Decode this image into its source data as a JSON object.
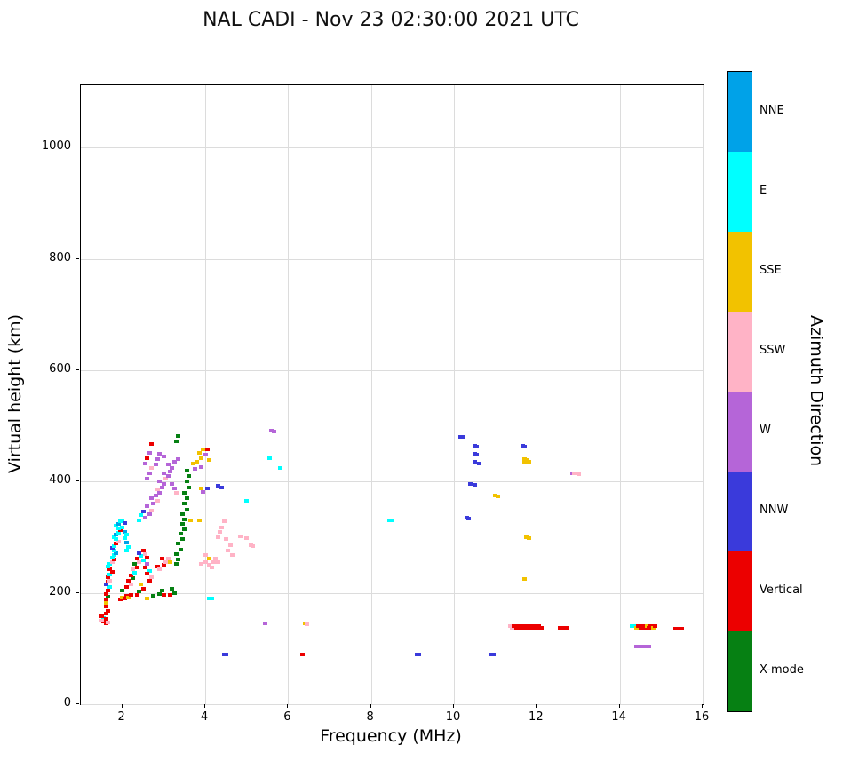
{
  "title": "NAL CADI - Nov 23 02:30:00 2021 UTC",
  "chart_data": {
    "type": "scatter",
    "title": "NAL CADI - Nov 23 02:30:00 2021 UTC",
    "xlabel": "Frequency (MHz)",
    "ylabel": "Virtual height (km)",
    "xlim": [
      1,
      16
    ],
    "ylim": [
      0,
      1112
    ],
    "xticks": [
      2,
      4,
      6,
      8,
      10,
      12,
      14,
      16
    ],
    "yticks": [
      0,
      200,
      400,
      600,
      800,
      1000
    ],
    "grid": true,
    "legend_position": "right-colorbar",
    "marker": {
      "w": 5,
      "h": 4
    },
    "colorbar": {
      "label": "Azimuth Direction",
      "categories": [
        {
          "key": "NNE",
          "label": "NNE",
          "color": "#00A2E8"
        },
        {
          "key": "E",
          "label": "E",
          "color": "#00FFFF"
        },
        {
          "key": "SSE",
          "label": "SSE",
          "color": "#F2C200"
        },
        {
          "key": "SSW",
          "label": "SSW",
          "color": "#FFB3C6"
        },
        {
          "key": "W",
          "label": "W",
          "color": "#B565D8"
        },
        {
          "key": "NNW",
          "label": "NNW",
          "color": "#3A3ADB"
        },
        {
          "key": "V",
          "label": "Vertical",
          "color": "#EC0000"
        },
        {
          "key": "X",
          "label": "X-mode",
          "color": "#068013"
        }
      ]
    },
    "points": [
      [
        1.55,
        148,
        "V"
      ],
      [
        1.6,
        145,
        "V"
      ],
      [
        1.65,
        146,
        "SSW"
      ],
      [
        1.55,
        155,
        "E"
      ],
      [
        1.6,
        153,
        "V"
      ],
      [
        1.6,
        162,
        "V"
      ],
      [
        1.65,
        168,
        "V"
      ],
      [
        1.6,
        175,
        "V"
      ],
      [
        1.62,
        182,
        "SSE"
      ],
      [
        1.6,
        188,
        "V"
      ],
      [
        1.65,
        193,
        "X"
      ],
      [
        1.6,
        198,
        "V"
      ],
      [
        1.65,
        205,
        "V"
      ],
      [
        1.7,
        210,
        "E"
      ],
      [
        1.6,
        215,
        "NNW"
      ],
      [
        1.65,
        220,
        "V"
      ],
      [
        1.7,
        222,
        "SSW"
      ],
      [
        1.65,
        228,
        "V"
      ],
      [
        1.7,
        233,
        "E"
      ],
      [
        1.75,
        238,
        "V"
      ],
      [
        1.7,
        243,
        "V"
      ],
      [
        1.65,
        248,
        "E"
      ],
      [
        1.5,
        150,
        "SSW"
      ],
      [
        1.5,
        158,
        "V"
      ],
      [
        1.7,
        252,
        "E"
      ],
      [
        1.75,
        256,
        "SSW"
      ],
      [
        1.8,
        260,
        "V"
      ],
      [
        1.75,
        264,
        "E"
      ],
      [
        1.8,
        268,
        "E"
      ],
      [
        1.85,
        272,
        "NNE"
      ],
      [
        1.8,
        276,
        "E"
      ],
      [
        1.75,
        280,
        "NNW"
      ],
      [
        1.8,
        284,
        "E"
      ],
      [
        1.85,
        288,
        "V"
      ],
      [
        1.9,
        292,
        "SSW"
      ],
      [
        1.85,
        296,
        "E"
      ],
      [
        1.8,
        300,
        "E"
      ],
      [
        1.85,
        304,
        "NNE"
      ],
      [
        1.9,
        308,
        "E"
      ],
      [
        1.95,
        312,
        "V"
      ],
      [
        1.9,
        316,
        "E"
      ],
      [
        1.85,
        320,
        "E"
      ],
      [
        1.9,
        324,
        "NNE"
      ],
      [
        1.95,
        328,
        "E"
      ],
      [
        2.0,
        330,
        "E"
      ],
      [
        2.05,
        325,
        "NNW"
      ],
      [
        2.0,
        318,
        "E"
      ],
      [
        2.05,
        310,
        "NNE"
      ],
      [
        2.1,
        305,
        "E"
      ],
      [
        2.05,
        298,
        "E"
      ],
      [
        2.1,
        290,
        "NNE"
      ],
      [
        2.15,
        283,
        "E"
      ],
      [
        2.1,
        276,
        "E"
      ],
      [
        1.95,
        188,
        "V"
      ],
      [
        2.0,
        192,
        "SSE"
      ],
      [
        2.05,
        190,
        "V"
      ],
      [
        2.1,
        195,
        "V"
      ],
      [
        2.15,
        192,
        "SSE"
      ],
      [
        2.2,
        196,
        "V"
      ],
      [
        2.0,
        205,
        "X"
      ],
      [
        2.1,
        210,
        "V"
      ],
      [
        2.2,
        215,
        "SSW"
      ],
      [
        2.15,
        222,
        "V"
      ],
      [
        2.25,
        226,
        "X"
      ],
      [
        2.2,
        232,
        "V"
      ],
      [
        2.3,
        236,
        "E"
      ],
      [
        2.25,
        242,
        "SSW"
      ],
      [
        2.35,
        246,
        "V"
      ],
      [
        2.3,
        252,
        "X"
      ],
      [
        2.4,
        256,
        "SSW"
      ],
      [
        2.35,
        262,
        "V"
      ],
      [
        2.45,
        266,
        "E"
      ],
      [
        2.4,
        272,
        "NNW"
      ],
      [
        2.5,
        276,
        "V"
      ],
      [
        2.55,
        270,
        "SSW"
      ],
      [
        2.6,
        264,
        "V"
      ],
      [
        2.5,
        258,
        "E"
      ],
      [
        2.6,
        252,
        "W"
      ],
      [
        2.55,
        246,
        "V"
      ],
      [
        2.65,
        240,
        "E"
      ],
      [
        2.6,
        234,
        "V"
      ],
      [
        2.7,
        228,
        "SSW"
      ],
      [
        2.65,
        222,
        "V"
      ],
      [
        2.45,
        215,
        "SSE"
      ],
      [
        2.5,
        208,
        "V"
      ],
      [
        2.4,
        202,
        "X"
      ],
      [
        2.35,
        196,
        "V"
      ],
      [
        2.85,
        248,
        "V"
      ],
      [
        2.9,
        242,
        "SSW"
      ],
      [
        3.0,
        250,
        "V"
      ],
      [
        3.05,
        256,
        "SSW"
      ],
      [
        2.95,
        262,
        "V"
      ],
      [
        3.1,
        262,
        "SSW"
      ],
      [
        3.15,
        256,
        "SSE"
      ],
      [
        2.9,
        198,
        "X"
      ],
      [
        2.95,
        204,
        "X"
      ],
      [
        3.0,
        196,
        "V"
      ],
      [
        2.6,
        190,
        "SSE"
      ],
      [
        2.75,
        195,
        "X"
      ],
      [
        2.55,
        335,
        "W"
      ],
      [
        2.65,
        342,
        "W"
      ],
      [
        2.7,
        348,
        "SSW"
      ],
      [
        2.6,
        355,
        "W"
      ],
      [
        2.75,
        360,
        "W"
      ],
      [
        2.85,
        365,
        "SSW"
      ],
      [
        2.7,
        370,
        "W"
      ],
      [
        2.8,
        375,
        "W"
      ],
      [
        2.9,
        380,
        "W"
      ],
      [
        2.85,
        386,
        "SSW"
      ],
      [
        2.95,
        390,
        "W"
      ],
      [
        3.0,
        395,
        "W"
      ],
      [
        2.9,
        400,
        "W"
      ],
      [
        3.05,
        405,
        "SSW"
      ],
      [
        3.1,
        410,
        "W"
      ],
      [
        3.0,
        415,
        "W"
      ],
      [
        3.15,
        418,
        "W"
      ],
      [
        3.2,
        424,
        "W"
      ],
      [
        3.1,
        430,
        "W"
      ],
      [
        3.25,
        435,
        "W"
      ],
      [
        2.6,
        405,
        "W"
      ],
      [
        2.65,
        415,
        "W"
      ],
      [
        2.7,
        425,
        "SSW"
      ],
      [
        2.55,
        432,
        "W"
      ],
      [
        2.6,
        442,
        "V"
      ],
      [
        2.65,
        452,
        "W"
      ],
      [
        2.7,
        467,
        "V"
      ],
      [
        2.8,
        430,
        "W"
      ],
      [
        2.85,
        440,
        "W"
      ],
      [
        2.9,
        450,
        "W"
      ],
      [
        3.0,
        445,
        "W"
      ],
      [
        3.35,
        440,
        "W"
      ],
      [
        2.45,
        340,
        "E"
      ],
      [
        2.5,
        346,
        "NNW"
      ],
      [
        2.4,
        330,
        "E"
      ],
      [
        3.2,
        396,
        "W"
      ],
      [
        3.25,
        388,
        "W"
      ],
      [
        3.3,
        380,
        "SSW"
      ],
      [
        3.3,
        252,
        "X"
      ],
      [
        3.35,
        260,
        "X"
      ],
      [
        3.3,
        270,
        "X"
      ],
      [
        3.4,
        278,
        "X"
      ],
      [
        3.35,
        288,
        "X"
      ],
      [
        3.45,
        296,
        "X"
      ],
      [
        3.4,
        306,
        "X"
      ],
      [
        3.5,
        314,
        "X"
      ],
      [
        3.45,
        324,
        "X"
      ],
      [
        3.5,
        332,
        "X"
      ],
      [
        3.45,
        342,
        "X"
      ],
      [
        3.55,
        350,
        "X"
      ],
      [
        3.5,
        360,
        "X"
      ],
      [
        3.55,
        370,
        "X"
      ],
      [
        3.5,
        380,
        "X"
      ],
      [
        3.6,
        390,
        "X"
      ],
      [
        3.55,
        400,
        "X"
      ],
      [
        3.6,
        410,
        "X"
      ],
      [
        3.55,
        420,
        "X"
      ],
      [
        3.3,
        472,
        "X"
      ],
      [
        3.35,
        482,
        "X"
      ],
      [
        3.2,
        208,
        "X"
      ],
      [
        3.25,
        200,
        "X"
      ],
      [
        3.15,
        196,
        "V"
      ],
      [
        3.7,
        432,
        "SSE"
      ],
      [
        3.8,
        436,
        "SSE"
      ],
      [
        3.9,
        442,
        "SSE"
      ],
      [
        3.85,
        452,
        "SSE"
      ],
      [
        3.95,
        458,
        "SSE"
      ],
      [
        4.0,
        448,
        "W"
      ],
      [
        4.05,
        458,
        "V"
      ],
      [
        3.75,
        422,
        "W"
      ],
      [
        3.9,
        426,
        "W"
      ],
      [
        4.1,
        438,
        "SSE"
      ],
      [
        3.65,
        330,
        "SSE"
      ],
      [
        3.9,
        388,
        "SSE"
      ],
      [
        3.95,
        382,
        "W"
      ],
      [
        4.05,
        388,
        "NNW"
      ],
      [
        3.9,
        252,
        "SSW"
      ],
      [
        4.0,
        256,
        "SSW"
      ],
      [
        4.1,
        250,
        "SSW"
      ],
      [
        4.2,
        256,
        "SSW"
      ],
      [
        4.1,
        262,
        "SSE"
      ],
      [
        4.0,
        268,
        "SSW"
      ],
      [
        4.15,
        246,
        "SSW"
      ],
      [
        4.3,
        300,
        "SSW"
      ],
      [
        4.35,
        310,
        "SSW"
      ],
      [
        4.4,
        318,
        "SSW"
      ],
      [
        4.45,
        328,
        "SSW"
      ],
      [
        4.5,
        296,
        "SSW"
      ],
      [
        4.6,
        286,
        "SSW"
      ],
      [
        4.55,
        276,
        "SSW"
      ],
      [
        4.65,
        268,
        "SSW"
      ],
      [
        3.85,
        330,
        "SSE"
      ],
      [
        4.25,
        262,
        "SSW"
      ],
      [
        4.3,
        256,
        "SSW"
      ],
      [
        4.1,
        190,
        "E"
      ],
      [
        4.15,
        190,
        "E"
      ],
      [
        4.3,
        392,
        "NNW"
      ],
      [
        4.4,
        390,
        "NNW"
      ],
      [
        4.45,
        90,
        "NNW"
      ],
      [
        4.5,
        90,
        "NNW"
      ],
      [
        4.85,
        302,
        "SSW"
      ],
      [
        5.0,
        298,
        "SSW"
      ],
      [
        5.1,
        286,
        "SSW"
      ],
      [
        5.15,
        284,
        "SSW"
      ],
      [
        5.0,
        365,
        "E"
      ],
      [
        5.45,
        145,
        "W"
      ],
      [
        5.55,
        442,
        "E"
      ],
      [
        5.6,
        492,
        "W"
      ],
      [
        5.65,
        490,
        "W"
      ],
      [
        5.8,
        425,
        "E"
      ],
      [
        6.35,
        90,
        "V"
      ],
      [
        6.4,
        145,
        "SSE"
      ],
      [
        6.45,
        143,
        "SSW"
      ],
      [
        8.45,
        330,
        "E"
      ],
      [
        8.5,
        330,
        "E"
      ],
      [
        9.1,
        90,
        "NNW"
      ],
      [
        9.15,
        90,
        "NNW"
      ],
      [
        10.15,
        480,
        "NNW"
      ],
      [
        10.2,
        480,
        "NNW"
      ],
      [
        10.5,
        465,
        "NNW"
      ],
      [
        10.55,
        463,
        "NNW"
      ],
      [
        10.5,
        450,
        "NNW"
      ],
      [
        10.55,
        448,
        "NNW"
      ],
      [
        10.5,
        435,
        "NNW"
      ],
      [
        10.6,
        433,
        "NNW"
      ],
      [
        10.4,
        396,
        "NNW"
      ],
      [
        10.5,
        394,
        "NNW"
      ],
      [
        10.3,
        335,
        "NNW"
      ],
      [
        10.35,
        333,
        "NNW"
      ],
      [
        10.9,
        90,
        "NNW"
      ],
      [
        10.95,
        90,
        "NNW"
      ],
      [
        11.0,
        375,
        "SSE"
      ],
      [
        11.05,
        373,
        "SSE"
      ],
      [
        11.65,
        465,
        "NNW"
      ],
      [
        11.7,
        463,
        "NNW"
      ],
      [
        11.7,
        440,
        "SSE"
      ],
      [
        11.75,
        438,
        "SSE"
      ],
      [
        11.8,
        436,
        "SSE"
      ],
      [
        11.7,
        434,
        "SSE"
      ],
      [
        11.75,
        300,
        "SSE"
      ],
      [
        11.8,
        298,
        "SSE"
      ],
      [
        11.7,
        225,
        "SSE"
      ],
      [
        11.35,
        140,
        "SSW"
      ],
      [
        11.4,
        138,
        "SSW"
      ],
      [
        11.45,
        140,
        "V"
      ],
      [
        11.5,
        138,
        "V"
      ],
      [
        11.55,
        140,
        "V"
      ],
      [
        11.6,
        138,
        "V"
      ],
      [
        11.65,
        140,
        "V"
      ],
      [
        11.7,
        138,
        "V"
      ],
      [
        11.75,
        140,
        "V"
      ],
      [
        11.8,
        138,
        "V"
      ],
      [
        11.85,
        140,
        "V"
      ],
      [
        11.9,
        138,
        "V"
      ],
      [
        11.95,
        140,
        "V"
      ],
      [
        12.0,
        138,
        "V"
      ],
      [
        12.05,
        140,
        "V"
      ],
      [
        12.1,
        138,
        "V"
      ],
      [
        12.55,
        138,
        "V"
      ],
      [
        12.6,
        138,
        "V"
      ],
      [
        12.65,
        138,
        "V"
      ],
      [
        12.7,
        138,
        "V"
      ],
      [
        12.85,
        415,
        "W"
      ],
      [
        12.9,
        415,
        "SSW"
      ],
      [
        13.0,
        413,
        "SSW"
      ],
      [
        14.3,
        140,
        "E"
      ],
      [
        14.35,
        140,
        "E"
      ],
      [
        14.4,
        138,
        "SSE"
      ],
      [
        14.45,
        140,
        "V"
      ],
      [
        14.5,
        138,
        "V"
      ],
      [
        14.55,
        140,
        "V"
      ],
      [
        14.6,
        138,
        "V"
      ],
      [
        14.65,
        140,
        "SSE"
      ],
      [
        14.7,
        138,
        "V"
      ],
      [
        14.75,
        140,
        "V"
      ],
      [
        14.8,
        138,
        "SSE"
      ],
      [
        14.85,
        140,
        "V"
      ],
      [
        14.4,
        104,
        "W"
      ],
      [
        14.5,
        103,
        "W"
      ],
      [
        14.6,
        104,
        "W"
      ],
      [
        14.7,
        103,
        "W"
      ],
      [
        15.35,
        136,
        "V"
      ],
      [
        15.4,
        136,
        "V"
      ],
      [
        15.45,
        136,
        "V"
      ],
      [
        15.5,
        136,
        "V"
      ]
    ]
  }
}
